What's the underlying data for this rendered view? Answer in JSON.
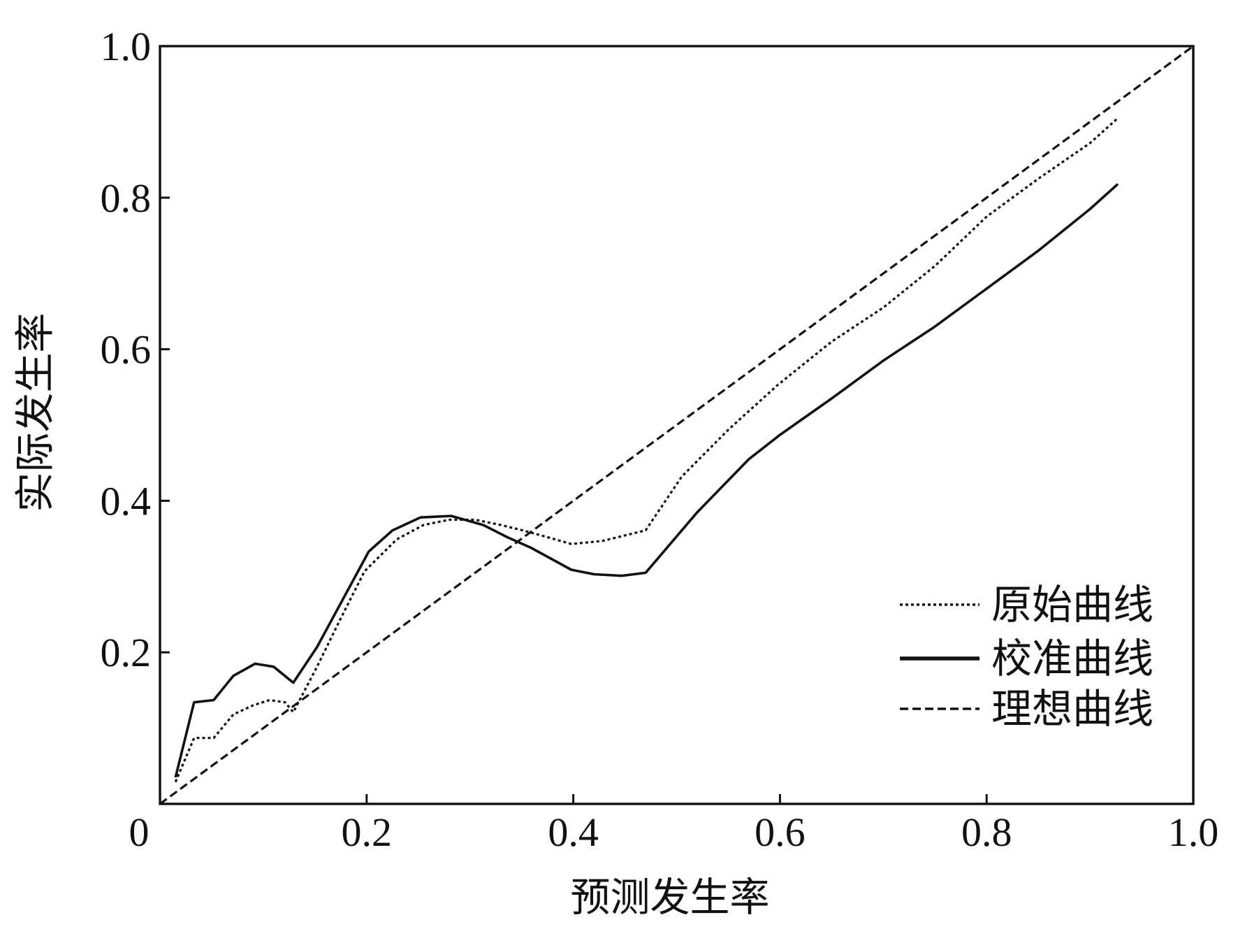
{
  "chart_data": {
    "type": "line",
    "xlabel": "预测发生率",
    "ylabel": "实际发生率",
    "xlim": [
      0,
      1
    ],
    "ylim": [
      0,
      1
    ],
    "grid": false,
    "legend": "bottom-right",
    "x_ticks": [
      {
        "value": 0,
        "label": "0"
      },
      {
        "value": 0.2,
        "label": "0.2"
      },
      {
        "value": 0.4,
        "label": "0.4"
      },
      {
        "value": 0.6,
        "label": "0.6"
      },
      {
        "value": 0.8,
        "label": "0.8"
      },
      {
        "value": 1.0,
        "label": "1.0"
      }
    ],
    "y_ticks": [
      {
        "value": 0.2,
        "label": "0.2"
      },
      {
        "value": 0.4,
        "label": "0.4"
      },
      {
        "value": 0.6,
        "label": "0.6"
      },
      {
        "value": 0.8,
        "label": "0.8"
      },
      {
        "value": 1.0,
        "label": "1.0"
      }
    ],
    "series": [
      {
        "name": "原始曲线",
        "line_style": "dotted",
        "color": "#111111",
        "points": [
          [
            0.015,
            0.029
          ],
          [
            0.033,
            0.087
          ],
          [
            0.052,
            0.087
          ],
          [
            0.071,
            0.118
          ],
          [
            0.09,
            0.13
          ],
          [
            0.106,
            0.137
          ],
          [
            0.121,
            0.134
          ],
          [
            0.129,
            0.121
          ],
          [
            0.152,
            0.181
          ],
          [
            0.175,
            0.245
          ],
          [
            0.198,
            0.307
          ],
          [
            0.229,
            0.349
          ],
          [
            0.255,
            0.368
          ],
          [
            0.28,
            0.375
          ],
          [
            0.305,
            0.375
          ],
          [
            0.33,
            0.368
          ],
          [
            0.351,
            0.361
          ],
          [
            0.375,
            0.352
          ],
          [
            0.398,
            0.343
          ],
          [
            0.428,
            0.347
          ],
          [
            0.47,
            0.361
          ],
          [
            0.505,
            0.432
          ],
          [
            0.551,
            0.495
          ],
          [
            0.598,
            0.553
          ],
          [
            0.65,
            0.61
          ],
          [
            0.7,
            0.655
          ],
          [
            0.75,
            0.71
          ],
          [
            0.8,
            0.775
          ],
          [
            0.85,
            0.825
          ],
          [
            0.9,
            0.872
          ],
          [
            0.927,
            0.905
          ]
        ]
      },
      {
        "name": "校准曲线",
        "line_style": "solid",
        "color": "#111111",
        "points": [
          [
            0.015,
            0.035
          ],
          [
            0.033,
            0.134
          ],
          [
            0.052,
            0.137
          ],
          [
            0.071,
            0.169
          ],
          [
            0.092,
            0.185
          ],
          [
            0.11,
            0.181
          ],
          [
            0.129,
            0.16
          ],
          [
            0.152,
            0.207
          ],
          [
            0.177,
            0.27
          ],
          [
            0.202,
            0.333
          ],
          [
            0.225,
            0.361
          ],
          [
            0.252,
            0.378
          ],
          [
            0.282,
            0.38
          ],
          [
            0.313,
            0.368
          ],
          [
            0.336,
            0.352
          ],
          [
            0.359,
            0.338
          ],
          [
            0.398,
            0.309
          ],
          [
            0.42,
            0.303
          ],
          [
            0.447,
            0.301
          ],
          [
            0.47,
            0.305
          ],
          [
            0.52,
            0.385
          ],
          [
            0.57,
            0.455
          ],
          [
            0.6,
            0.487
          ],
          [
            0.65,
            0.535
          ],
          [
            0.7,
            0.585
          ],
          [
            0.75,
            0.63
          ],
          [
            0.8,
            0.68
          ],
          [
            0.85,
            0.73
          ],
          [
            0.9,
            0.785
          ],
          [
            0.927,
            0.818
          ]
        ]
      },
      {
        "name": "理想曲线",
        "line_style": "dashed",
        "color": "#111111",
        "points": [
          [
            0,
            0
          ],
          [
            0.2,
            0.2
          ],
          [
            0.4,
            0.4
          ],
          [
            0.6,
            0.6
          ],
          [
            0.8,
            0.8
          ],
          [
            1.0,
            1.0
          ]
        ]
      }
    ]
  }
}
